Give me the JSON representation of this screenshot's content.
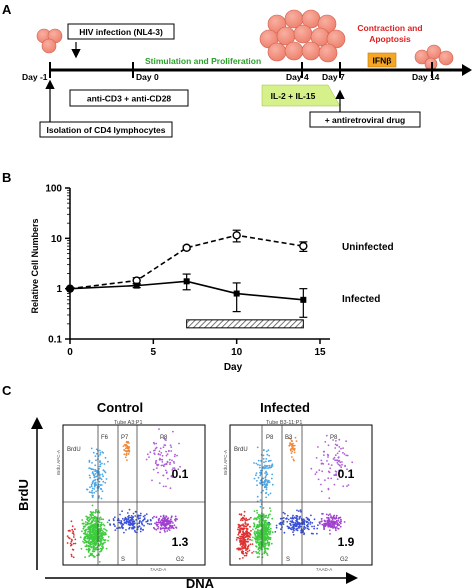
{
  "panel_a": {
    "letter": "A",
    "day_labels": [
      "Day -1",
      "Day 0",
      "Day 4",
      "Day 7",
      "Day 14"
    ],
    "hiv_infection": "HIV infection (NL4-3)",
    "stimulation": "Stimulation and Proliferation",
    "contraction_line1": "Contraction and",
    "contraction_line2": "Apoptosis",
    "ifn": "IFNβ",
    "anti_cd": "anti-CD3 + anti-CD28",
    "il": "IL-2 + IL-15",
    "antiretroviral": "+ antiretroviral drug",
    "isolation": "Isolation of CD4 lymphocytes",
    "colors": {
      "cell": "#f08a78",
      "cell_edge": "#c0504a",
      "green_text": "#2ca02c",
      "red_text": "#e02020",
      "ifn_box": "#f5a623",
      "il_box": "#d6f08a"
    }
  },
  "panel_b": {
    "letter": "B",
    "chart_data": {
      "type": "line",
      "yscale": "log",
      "xlabel": "Day",
      "ylabel": "Relative Cell Numbers",
      "xlim": [
        0,
        15
      ],
      "ylim": [
        0.1,
        100
      ],
      "x_ticks": [
        "0",
        "5",
        "10",
        "15"
      ],
      "y_ticks": [
        "0.1",
        "1",
        "10",
        "100"
      ],
      "series": [
        {
          "name": "Uninfected",
          "style": "dashed",
          "marker": "open-circle",
          "x": [
            0,
            4,
            7,
            10,
            14
          ],
          "y": [
            1.0,
            1.45,
            6.5,
            11.5,
            7.0
          ],
          "err_low": [
            0,
            0.2,
            0.5,
            3.0,
            1.5
          ],
          "err_high": [
            0,
            0.2,
            0.5,
            3.0,
            1.5
          ]
        },
        {
          "name": "Infected",
          "style": "solid",
          "marker": "filled-square",
          "x": [
            0,
            4,
            7,
            10,
            14
          ],
          "y": [
            1.0,
            1.15,
            1.4,
            0.8,
            0.6
          ],
          "err_low": [
            0,
            0.1,
            0.45,
            0.45,
            0.33
          ],
          "err_high": [
            0,
            0.1,
            0.55,
            0.5,
            0.4
          ]
        }
      ],
      "shaded_interval": [
        7,
        14
      ]
    }
  },
  "panel_c": {
    "letter": "C",
    "ylabel": "BrdU",
    "xlabel": "DNA",
    "plots": [
      {
        "title": "Control",
        "header": "Tube A3:P1",
        "gates": [
          "F6",
          "P7",
          "P8",
          "BrdU",
          "S",
          "G2"
        ],
        "top_value": "0.1",
        "bottom_value": "1.3",
        "x_axis": "7AAD-A",
        "y_axis": "BrdU APC-A"
      },
      {
        "title": "Infected",
        "header": "Tube B3-11:P1",
        "gates": [
          "P8",
          "B3",
          "P8",
          "BrdU",
          "S",
          "G2"
        ],
        "top_value": "0.1",
        "bottom_value": "1.9",
        "x_axis": "7AAD-A",
        "y_axis": "BrdU APC-A"
      }
    ]
  }
}
